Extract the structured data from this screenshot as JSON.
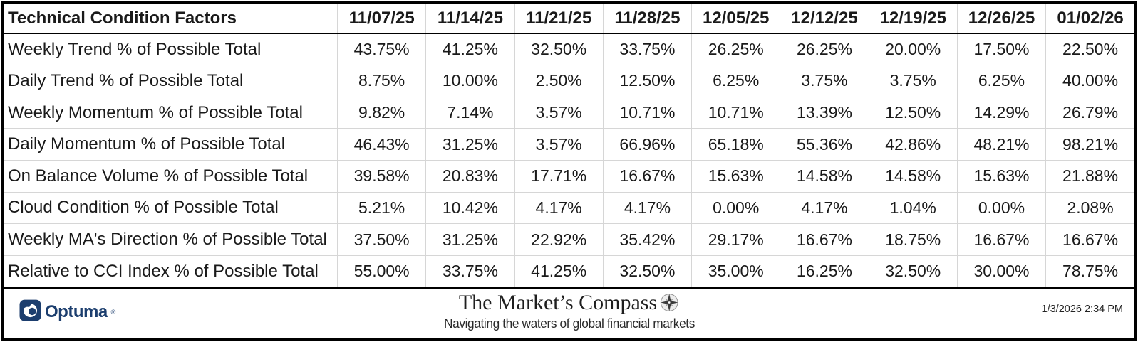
{
  "table": {
    "header": {
      "label": "Technical Condition Factors",
      "dates": [
        "11/07/25",
        "11/14/25",
        "11/21/25",
        "11/28/25",
        "12/05/25",
        "12/12/25",
        "12/19/25",
        "12/26/25",
        "01/02/26"
      ]
    },
    "rows": [
      {
        "label": "Weekly Trend % of Possible Total",
        "values": [
          "43.75%",
          "41.25%",
          "32.50%",
          "33.75%",
          "26.25%",
          "26.25%",
          "20.00%",
          "17.50%",
          "22.50%"
        ]
      },
      {
        "label": "Daily Trend % of Possible Total",
        "values": [
          "8.75%",
          "10.00%",
          "2.50%",
          "12.50%",
          "6.25%",
          "3.75%",
          "3.75%",
          "6.25%",
          "40.00%"
        ]
      },
      {
        "label": "Weekly Momentum % of Possible Total",
        "values": [
          "9.82%",
          "7.14%",
          "3.57%",
          "10.71%",
          "10.71%",
          "13.39%",
          "12.50%",
          "14.29%",
          "26.79%"
        ]
      },
      {
        "label": "Daily Momentum % of Possible Total",
        "values": [
          "46.43%",
          "31.25%",
          "3.57%",
          "66.96%",
          "65.18%",
          "55.36%",
          "42.86%",
          "48.21%",
          "98.21%"
        ]
      },
      {
        "label": "On Balance Volume % of Possible Total",
        "values": [
          "39.58%",
          "20.83%",
          "17.71%",
          "16.67%",
          "15.63%",
          "14.58%",
          "14.58%",
          "15.63%",
          "21.88%"
        ]
      },
      {
        "label": "Cloud Condition % of Possible Total",
        "values": [
          "5.21%",
          "10.42%",
          "4.17%",
          "4.17%",
          "0.00%",
          "4.17%",
          "1.04%",
          "0.00%",
          "2.08%"
        ]
      },
      {
        "label": "Weekly MA's Direction % of Possible Total",
        "values": [
          "37.50%",
          "31.25%",
          "22.92%",
          "35.42%",
          "29.17%",
          "16.67%",
          "18.75%",
          "16.67%",
          "16.67%"
        ]
      },
      {
        "label": "Relative to CCI Index % of Possible Total",
        "values": [
          "55.00%",
          "33.75%",
          "41.25%",
          "32.50%",
          "35.00%",
          "16.25%",
          "32.50%",
          "30.00%",
          "78.75%"
        ]
      }
    ]
  },
  "chart_data": {
    "type": "table",
    "title": "Technical Condition Factors",
    "units": "percent of possible total",
    "categories": [
      "11/07/25",
      "11/14/25",
      "11/21/25",
      "11/28/25",
      "12/05/25",
      "12/12/25",
      "12/19/25",
      "12/26/25",
      "01/02/26"
    ],
    "series": [
      {
        "name": "Weekly Trend % of Possible Total",
        "values": [
          43.75,
          41.25,
          32.5,
          33.75,
          26.25,
          26.25,
          20.0,
          17.5,
          22.5
        ]
      },
      {
        "name": "Daily Trend % of Possible Total",
        "values": [
          8.75,
          10.0,
          2.5,
          12.5,
          6.25,
          3.75,
          3.75,
          6.25,
          40.0
        ]
      },
      {
        "name": "Weekly Momentum % of Possible Total",
        "values": [
          9.82,
          7.14,
          3.57,
          10.71,
          10.71,
          13.39,
          12.5,
          14.29,
          26.79
        ]
      },
      {
        "name": "Daily Momentum % of Possible Total",
        "values": [
          46.43,
          31.25,
          3.57,
          66.96,
          65.18,
          55.36,
          42.86,
          48.21,
          98.21
        ]
      },
      {
        "name": "On Balance Volume % of Possible Total",
        "values": [
          39.58,
          20.83,
          17.71,
          16.67,
          15.63,
          14.58,
          14.58,
          15.63,
          21.88
        ]
      },
      {
        "name": "Cloud Condition % of Possible Total",
        "values": [
          5.21,
          10.42,
          4.17,
          4.17,
          0.0,
          4.17,
          1.04,
          0.0,
          2.08
        ]
      },
      {
        "name": "Weekly MA's Direction % of Possible Total",
        "values": [
          37.5,
          31.25,
          22.92,
          35.42,
          29.17,
          16.67,
          18.75,
          16.67,
          16.67
        ]
      },
      {
        "name": "Relative to CCI Index % of Possible Total",
        "values": [
          55.0,
          33.75,
          41.25,
          32.5,
          35.0,
          16.25,
          32.5,
          30.0,
          78.75
        ]
      }
    ]
  },
  "footer": {
    "logo_text": "Optuma",
    "logo_reg": "®",
    "title": "The Market’s Compass",
    "tagline": "Navigating the waters of global financial markets",
    "timestamp": "1/3/2026 2:34 PM"
  },
  "colors": {
    "optuma_navy": "#1c3e6e",
    "grid_gray": "#d6d6d6",
    "text": "#1a1a1a",
    "compass_dark": "#3a3a3a",
    "compass_light": "#9a9a9a"
  }
}
